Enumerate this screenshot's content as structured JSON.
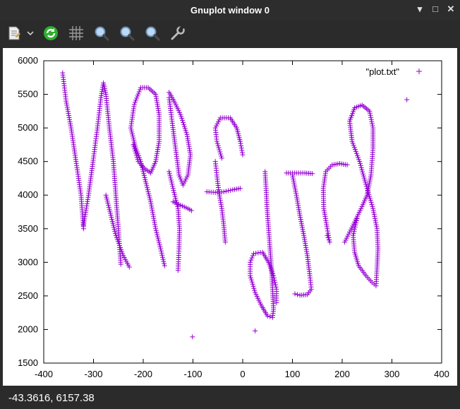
{
  "window": {
    "title": "Gnuplot window 0"
  },
  "controls": {
    "minimize": "▾",
    "maximize": "□",
    "close": "✕"
  },
  "toolbar": {
    "icons": [
      "copy-icon",
      "chevron-down-icon",
      "replot-icon",
      "grid-icon",
      "zoom-previous-icon",
      "zoom-next-icon",
      "unzoom-icon",
      "settings-icon"
    ]
  },
  "status": {
    "coordinates": "-43.3616,  6157.38"
  },
  "chart_data": {
    "type": "scatter",
    "xlim": [
      -400,
      400
    ],
    "ylim": [
      1500,
      6000
    ],
    "xticks": [
      -400,
      -300,
      -200,
      -100,
      0,
      100,
      200,
      300,
      400
    ],
    "yticks": [
      1500,
      2000,
      2500,
      3000,
      3500,
      4000,
      4500,
      5000,
      5500,
      6000
    ],
    "legend": {
      "label": "\"plot.txt\"",
      "position": "top-right"
    },
    "marker": "+",
    "color": "#9400d3",
    "strokes": [
      [
        [
          -362,
          5820
        ],
        [
          -355,
          5400
        ],
        [
          -345,
          5000
        ],
        [
          -335,
          4500
        ],
        [
          -325,
          4000
        ],
        [
          -320,
          3500
        ]
      ],
      [
        [
          -320,
          3550
        ],
        [
          -310,
          4000
        ],
        [
          -300,
          4550
        ],
        [
          -292,
          5000
        ],
        [
          -285,
          5450
        ],
        [
          -280,
          5670
        ],
        [
          -275,
          5500
        ],
        [
          -268,
          5000
        ],
        [
          -260,
          4500
        ],
        [
          -255,
          4000
        ],
        [
          -250,
          3500
        ],
        [
          -245,
          2970
        ]
      ],
      [
        [
          -228,
          2930
        ],
        [
          -240,
          3100
        ],
        [
          -255,
          3400
        ],
        [
          -265,
          3700
        ],
        [
          -275,
          4000
        ]
      ],
      [
        [
          -220,
          4750
        ],
        [
          -210,
          4500
        ],
        [
          -198,
          4400
        ],
        [
          -185,
          4330
        ],
        [
          -175,
          4500
        ],
        [
          -168,
          4800
        ],
        [
          -168,
          5200
        ],
        [
          -175,
          5500
        ],
        [
          -190,
          5600
        ],
        [
          -205,
          5600
        ],
        [
          -218,
          5350
        ],
        [
          -225,
          5000
        ],
        [
          -215,
          4700
        ],
        [
          -205,
          4500
        ],
        [
          -195,
          4200
        ],
        [
          -185,
          3900
        ],
        [
          -175,
          3500
        ],
        [
          -165,
          3200
        ],
        [
          -157,
          2950
        ]
      ],
      [
        [
          -148,
          5530
        ],
        [
          -138,
          5400
        ],
        [
          -125,
          5200
        ],
        [
          -112,
          4900
        ],
        [
          -105,
          4600
        ],
        [
          -110,
          4300
        ],
        [
          -120,
          4150
        ],
        [
          -128,
          4300
        ],
        [
          -135,
          4700
        ],
        [
          -142,
          5100
        ],
        [
          -148,
          5450
        ]
      ],
      [
        [
          -148,
          4350
        ],
        [
          -140,
          4100
        ],
        [
          -130,
          3800
        ],
        [
          -127,
          3500
        ],
        [
          -128,
          3200
        ],
        [
          -130,
          2880
        ]
      ],
      [
        [
          -140,
          3900
        ],
        [
          -125,
          3850
        ],
        [
          -110,
          3800
        ],
        [
          -103,
          3770
        ]
      ],
      [
        [
          -72,
          4050
        ],
        [
          -55,
          4040
        ],
        [
          -38,
          4050
        ],
        [
          -20,
          4080
        ],
        [
          -5,
          4100
        ]
      ],
      [
        [
          -55,
          4500
        ],
        [
          -52,
          4300
        ],
        [
          -48,
          4050
        ],
        [
          -42,
          3800
        ],
        [
          -38,
          3550
        ],
        [
          -35,
          3300
        ]
      ],
      [
        [
          -42,
          4550
        ],
        [
          -52,
          4800
        ],
        [
          -55,
          5000
        ],
        [
          -45,
          5150
        ],
        [
          -25,
          5150
        ],
        [
          -12,
          5000
        ],
        [
          -5,
          4800
        ],
        [
          0,
          4600
        ]
      ],
      [
        [
          25,
          1980
        ]
      ],
      [
        [
          45,
          4350
        ],
        [
          47,
          4100
        ],
        [
          49,
          3800
        ],
        [
          52,
          3500
        ],
        [
          55,
          3200
        ],
        [
          58,
          2900
        ],
        [
          60,
          2600
        ],
        [
          62,
          2300
        ],
        [
          60,
          2180
        ],
        [
          50,
          2200
        ],
        [
          38,
          2350
        ],
        [
          25,
          2550
        ],
        [
          15,
          2800
        ],
        [
          15,
          3000
        ],
        [
          22,
          3130
        ],
        [
          40,
          3150
        ],
        [
          52,
          3000
        ],
        [
          62,
          2800
        ],
        [
          68,
          2600
        ],
        [
          68,
          2400
        ]
      ],
      [
        [
          88,
          4330
        ],
        [
          108,
          4330
        ],
        [
          125,
          4330
        ],
        [
          140,
          4320
        ]
      ],
      [
        [
          100,
          4300
        ],
        [
          108,
          4000
        ],
        [
          115,
          3700
        ],
        [
          123,
          3400
        ],
        [
          130,
          3100
        ],
        [
          135,
          2800
        ],
        [
          138,
          2600
        ],
        [
          130,
          2520
        ],
        [
          115,
          2510
        ],
        [
          105,
          2530
        ]
      ],
      [
        [
          170,
          3400
        ],
        [
          175,
          3300
        ],
        [
          170,
          3500
        ],
        [
          163,
          3800
        ],
        [
          162,
          4100
        ],
        [
          167,
          4350
        ],
        [
          180,
          4450
        ],
        [
          195,
          4470
        ],
        [
          210,
          4450
        ]
      ],
      [
        [
          230,
          3650
        ],
        [
          222,
          3400
        ],
        [
          225,
          3150
        ],
        [
          233,
          2950
        ],
        [
          248,
          2800
        ],
        [
          260,
          2700
        ],
        [
          268,
          2650
        ],
        [
          270,
          2900
        ],
        [
          272,
          3200
        ],
        [
          270,
          3500
        ],
        [
          262,
          3800
        ],
        [
          250,
          4100
        ],
        [
          235,
          4500
        ],
        [
          220,
          4800
        ],
        [
          215,
          5100
        ],
        [
          225,
          5300
        ],
        [
          240,
          5340
        ],
        [
          255,
          5250
        ],
        [
          262,
          5000
        ],
        [
          262,
          4700
        ],
        [
          258,
          4300
        ],
        [
          250,
          4000
        ],
        [
          238,
          3800
        ],
        [
          225,
          3600
        ],
        [
          215,
          3450
        ],
        [
          205,
          3300
        ]
      ],
      [
        [
          330,
          5420
        ]
      ],
      [
        [
          -101,
          1890
        ]
      ]
    ]
  }
}
